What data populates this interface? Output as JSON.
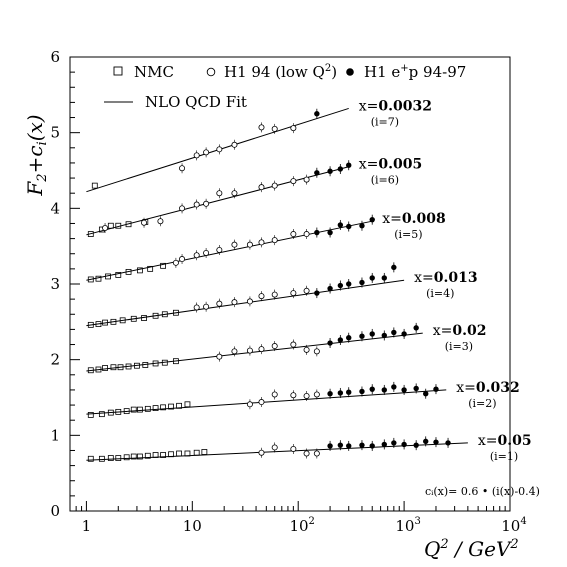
{
  "chart_data": {
    "type": "scatter",
    "x_scale": "log",
    "xlim": [
      0.7,
      10000
    ],
    "ylim": [
      0,
      6
    ],
    "x_ticks": [
      {
        "value": 1,
        "label": "1"
      },
      {
        "value": 10,
        "label": "10"
      },
      {
        "value": 100,
        "label": "10",
        "sup": "2"
      },
      {
        "value": 1000,
        "label": "10",
        "sup": "3"
      },
      {
        "value": 10000,
        "label": "10",
        "sup": "4"
      }
    ],
    "y_ticks": [
      0,
      1,
      2,
      3,
      4,
      5,
      6
    ],
    "xlabel": {
      "main": "Q",
      "sup1": "2",
      "rest": " / GeV",
      "sup2": "2"
    },
    "ylabel": {
      "main": "F",
      "sub1": "2",
      "mid": "+c",
      "sub2": "i",
      "rest": "(x)"
    },
    "legend": {
      "nmc": "NMC",
      "h1_94": "H1 94 (low Q",
      "h1_94_sup": "2",
      "h1_94_end": ")",
      "h1_ep_pre": "H1 e",
      "h1_ep_sup": "+",
      "h1_ep_post": "p 94-97",
      "fit": "NLO QCD Fit"
    },
    "formula": "cᵢ(x)= 0.6 • (i(x)-0.4)",
    "bins": [
      {
        "x_label_pre": "x=",
        "x_label_bold": "0.0032",
        "i_label": "(i=7)",
        "fit": [
          [
            1,
            4.22
          ],
          [
            300,
            5.32
          ]
        ],
        "nmc": [
          [
            1.2,
            4.3
          ]
        ],
        "h1_94": [
          [
            8,
            4.53
          ],
          [
            11,
            4.7
          ],
          [
            13.5,
            4.74
          ],
          [
            18,
            4.78
          ],
          [
            25,
            4.84
          ],
          [
            45,
            5.07
          ],
          [
            60,
            5.05
          ],
          [
            90,
            5.06
          ]
        ],
        "h1_ep": [
          [
            150,
            5.25
          ]
        ]
      },
      {
        "x_label_pre": "x=",
        "x_label_bold": "0.005",
        "i_label": "(i=6)",
        "fit": [
          [
            1,
            3.65
          ],
          [
            300,
            4.55
          ]
        ],
        "nmc": [
          [
            1.1,
            3.66
          ],
          [
            1.4,
            3.72
          ],
          [
            1.7,
            3.77
          ],
          [
            2,
            3.77
          ],
          [
            2.5,
            3.79
          ],
          [
            3.6,
            3.82
          ]
        ],
        "h1_94": [
          [
            1.5,
            3.74
          ],
          [
            3.5,
            3.81
          ],
          [
            5,
            3.83
          ],
          [
            8,
            4.0
          ],
          [
            11,
            4.05
          ],
          [
            13.5,
            4.06
          ],
          [
            18,
            4.2
          ],
          [
            25,
            4.2
          ],
          [
            45,
            4.28
          ],
          [
            60,
            4.3
          ],
          [
            90,
            4.36
          ],
          [
            120,
            4.38
          ]
        ],
        "h1_ep": [
          [
            150,
            4.47
          ],
          [
            200,
            4.49
          ],
          [
            250,
            4.52
          ],
          [
            300,
            4.57
          ]
        ]
      },
      {
        "x_label_pre": "x=",
        "x_label_bold": "0.008",
        "i_label": "(i=5)",
        "fit": [
          [
            1,
            3.05
          ],
          [
            500,
            3.83
          ]
        ],
        "nmc": [
          [
            1.1,
            3.06
          ],
          [
            1.3,
            3.07
          ],
          [
            1.6,
            3.1
          ],
          [
            2,
            3.12
          ],
          [
            2.5,
            3.16
          ],
          [
            3.2,
            3.18
          ],
          [
            4,
            3.2
          ],
          [
            5.3,
            3.24
          ]
        ],
        "h1_94": [
          [
            7,
            3.28
          ],
          [
            8,
            3.33
          ],
          [
            11,
            3.38
          ],
          [
            13.5,
            3.41
          ],
          [
            18,
            3.45
          ],
          [
            25,
            3.52
          ],
          [
            35,
            3.52
          ],
          [
            45,
            3.55
          ],
          [
            60,
            3.58
          ],
          [
            90,
            3.66
          ],
          [
            120,
            3.66
          ]
        ],
        "h1_ep": [
          [
            150,
            3.68
          ],
          [
            200,
            3.68
          ],
          [
            250,
            3.78
          ],
          [
            300,
            3.76
          ],
          [
            400,
            3.77
          ],
          [
            500,
            3.85
          ]
        ]
      },
      {
        "x_label_pre": "x=",
        "x_label_bold": "0.013",
        "i_label": "(i=4)",
        "fit": [
          [
            1,
            2.45
          ],
          [
            1000,
            3.05
          ]
        ],
        "nmc": [
          [
            1.1,
            2.46
          ],
          [
            1.3,
            2.47
          ],
          [
            1.5,
            2.49
          ],
          [
            1.8,
            2.5
          ],
          [
            2.2,
            2.52
          ],
          [
            2.8,
            2.54
          ],
          [
            3.5,
            2.55
          ],
          [
            4.5,
            2.58
          ],
          [
            5.5,
            2.6
          ],
          [
            7,
            2.62
          ]
        ],
        "h1_94": [
          [
            11,
            2.69
          ],
          [
            13.5,
            2.7
          ],
          [
            18,
            2.74
          ],
          [
            25,
            2.76
          ],
          [
            35,
            2.77
          ],
          [
            45,
            2.84
          ],
          [
            60,
            2.86
          ],
          [
            90,
            2.88
          ],
          [
            120,
            2.91
          ]
        ],
        "h1_ep": [
          [
            150,
            2.88
          ],
          [
            200,
            2.94
          ],
          [
            250,
            2.98
          ],
          [
            300,
            3.0
          ],
          [
            400,
            3.02
          ],
          [
            500,
            3.08
          ],
          [
            650,
            3.08
          ],
          [
            800,
            3.22
          ]
        ]
      },
      {
        "x_label_pre": "x=",
        "x_label_bold": "0.02",
        "i_label": "(i=3)",
        "fit": [
          [
            1,
            1.85
          ],
          [
            1500,
            2.35
          ]
        ],
        "nmc": [
          [
            1.1,
            1.86
          ],
          [
            1.3,
            1.87
          ],
          [
            1.5,
            1.89
          ],
          [
            1.8,
            1.9
          ],
          [
            2.1,
            1.9
          ],
          [
            2.5,
            1.91
          ],
          [
            3,
            1.92
          ],
          [
            3.6,
            1.93
          ],
          [
            4.5,
            1.95
          ],
          [
            5.5,
            1.96
          ],
          [
            7,
            1.98
          ]
        ],
        "h1_94": [
          [
            18,
            2.04
          ],
          [
            25,
            2.11
          ],
          [
            35,
            2.12
          ],
          [
            45,
            2.14
          ],
          [
            60,
            2.18
          ],
          [
            90,
            2.2
          ],
          [
            120,
            2.13
          ],
          [
            150,
            2.11
          ]
        ],
        "h1_ep": [
          [
            200,
            2.22
          ],
          [
            250,
            2.26
          ],
          [
            300,
            2.29
          ],
          [
            400,
            2.31
          ],
          [
            500,
            2.34
          ],
          [
            650,
            2.32
          ],
          [
            800,
            2.36
          ],
          [
            1000,
            2.34
          ],
          [
            1300,
            2.42
          ]
        ]
      },
      {
        "x_label_pre": "x=",
        "x_label_bold": "0.032",
        "i_label": "(i=2)",
        "fit": [
          [
            1,
            1.28
          ],
          [
            2500,
            1.6
          ]
        ],
        "nmc": [
          [
            1.1,
            1.27
          ],
          [
            1.4,
            1.28
          ],
          [
            1.7,
            1.3
          ],
          [
            2,
            1.31
          ],
          [
            2.4,
            1.32
          ],
          [
            2.8,
            1.34
          ],
          [
            3.2,
            1.34
          ],
          [
            3.8,
            1.35
          ],
          [
            4.5,
            1.36
          ],
          [
            5.3,
            1.37
          ],
          [
            6.3,
            1.38
          ],
          [
            7.5,
            1.39
          ],
          [
            9,
            1.41
          ]
        ],
        "h1_94": [
          [
            35,
            1.41
          ],
          [
            45,
            1.44
          ],
          [
            60,
            1.54
          ],
          [
            90,
            1.53
          ],
          [
            120,
            1.52
          ],
          [
            150,
            1.54
          ]
        ],
        "h1_ep": [
          [
            200,
            1.55
          ],
          [
            250,
            1.56
          ],
          [
            300,
            1.57
          ],
          [
            400,
            1.58
          ],
          [
            500,
            1.61
          ],
          [
            650,
            1.6
          ],
          [
            800,
            1.64
          ],
          [
            1000,
            1.6
          ],
          [
            1300,
            1.62
          ],
          [
            1600,
            1.55
          ],
          [
            2000,
            1.61
          ]
        ]
      },
      {
        "x_label_pre": "x=",
        "x_label_bold": "0.05",
        "i_label": "(i=1)",
        "fit": [
          [
            1,
            0.67
          ],
          [
            4000,
            0.9
          ]
        ],
        "nmc": [
          [
            1.1,
            0.69
          ],
          [
            1.4,
            0.69
          ],
          [
            1.7,
            0.7
          ],
          [
            2,
            0.7
          ],
          [
            2.4,
            0.71
          ],
          [
            2.8,
            0.72
          ],
          [
            3.2,
            0.72
          ],
          [
            3.8,
            0.73
          ],
          [
            4.5,
            0.74
          ],
          [
            5.3,
            0.74
          ],
          [
            6.3,
            0.75
          ],
          [
            7.5,
            0.76
          ],
          [
            9,
            0.76
          ],
          [
            11,
            0.77
          ],
          [
            13,
            0.78
          ]
        ],
        "h1_94": [
          [
            45,
            0.77
          ],
          [
            60,
            0.84
          ],
          [
            90,
            0.82
          ],
          [
            120,
            0.76
          ],
          [
            150,
            0.76
          ]
        ],
        "h1_ep": [
          [
            200,
            0.86
          ],
          [
            250,
            0.87
          ],
          [
            300,
            0.86
          ],
          [
            400,
            0.87
          ],
          [
            500,
            0.86
          ],
          [
            650,
            0.88
          ],
          [
            800,
            0.9
          ],
          [
            1000,
            0.88
          ],
          [
            1300,
            0.87
          ],
          [
            1600,
            0.92
          ],
          [
            2000,
            0.91
          ],
          [
            2600,
            0.9
          ]
        ]
      }
    ]
  }
}
